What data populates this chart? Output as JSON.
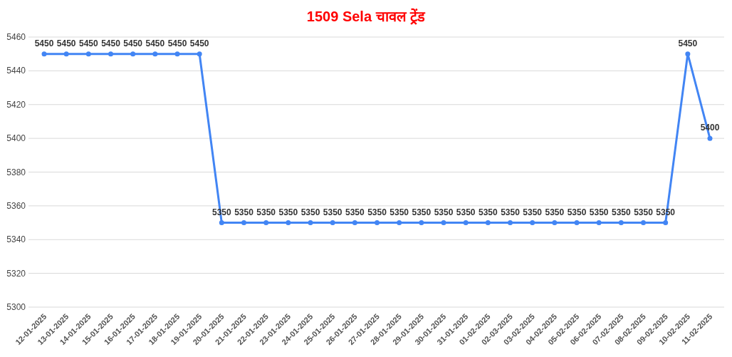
{
  "chart_data": {
    "type": "line",
    "title": "1509 Sela चावल ट्रेंड",
    "categories": [
      "12-01-2025",
      "13-01-2025",
      "14-01-2025",
      "15-01-2025",
      "16-01-2025",
      "17-01-2025",
      "18-01-2025",
      "19-01-2025",
      "20-01-2025",
      "21-01-2025",
      "22-01-2025",
      "23-01-2025",
      "24-01-2025",
      "25-01-2025",
      "26-01-2025",
      "27-01-2025",
      "28-01-2025",
      "29-01-2025",
      "30-01-2025",
      "31-01-2025",
      "01-02-2025",
      "02-03-2025",
      "03-02-2025",
      "04-02-2025",
      "05-02-2025",
      "06-02-2025",
      "07-02-2025",
      "08-02-2025",
      "09-02-2025",
      "10-02-2025",
      "11-02-2025"
    ],
    "series": [
      {
        "color": "#4285f4",
        "values": [
          5450,
          5450,
          5450,
          5450,
          5450,
          5450,
          5450,
          5450,
          5350,
          5350,
          5350,
          5350,
          5350,
          5350,
          5350,
          5350,
          5350,
          5350,
          5350,
          5350,
          5350,
          5350,
          5350,
          5350,
          5350,
          5350,
          5350,
          5350,
          5350,
          5450,
          5400
        ]
      }
    ],
    "ylim": [
      5300,
      5460
    ],
    "yticks": [
      5300,
      5320,
      5340,
      5360,
      5380,
      5400,
      5420,
      5440,
      5460
    ],
    "grid": "y",
    "marker": "circle",
    "line_style": "solid",
    "data_labels": true
  }
}
